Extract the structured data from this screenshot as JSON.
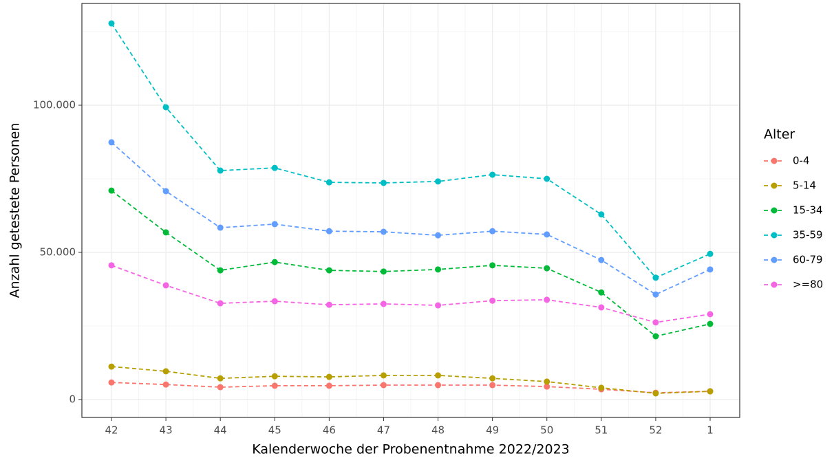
{
  "chart_data": {
    "type": "line",
    "x_label": "Kalenderwoche der Probenentnahme 2022/2023",
    "y_label": "Anzahl getestete Personen",
    "legend_title": "Alter",
    "legend_position": "right",
    "grid": true,
    "categories": [
      "42",
      "43",
      "44",
      "45",
      "46",
      "47",
      "48",
      "49",
      "50",
      "51",
      "52",
      "1"
    ],
    "ylim": [
      -6075,
      134580
    ],
    "yticks": [
      0,
      {
        "value": 50000,
        "label": "50.000"
      },
      {
        "value": 100000,
        "label": "100.000"
      }
    ],
    "series": [
      {
        "name": "0-4",
        "color": "#F8766D",
        "values": [
          5800,
          5100,
          4200,
          4700,
          4700,
          4900,
          4900,
          4900,
          4400,
          3500,
          2300,
          2800
        ]
      },
      {
        "name": "5-14",
        "color": "#B79F00",
        "values": [
          11200,
          9600,
          7200,
          7900,
          7700,
          8200,
          8200,
          7200,
          6100,
          4000,
          2100,
          2800
        ]
      },
      {
        "name": "15-34",
        "color": "#00BA38",
        "values": [
          71000,
          56800,
          43900,
          46700,
          43900,
          43500,
          44200,
          45600,
          44600,
          36400,
          21500,
          25700
        ]
      },
      {
        "name": "35-59",
        "color": "#00BFC4",
        "values": [
          127800,
          99300,
          77800,
          78700,
          73800,
          73600,
          74100,
          76400,
          75000,
          62900,
          41400,
          49500
        ]
      },
      {
        "name": "60-79",
        "color": "#619CFF",
        "values": [
          87400,
          70800,
          58400,
          59600,
          57200,
          57000,
          55800,
          57200,
          56100,
          47400,
          35700,
          44200
        ]
      },
      {
        "name": ">=80",
        "color": "#F564E3",
        "values": [
          45600,
          38800,
          32700,
          33400,
          32200,
          32500,
          32000,
          33600,
          33900,
          31300,
          26200,
          29000
        ]
      }
    ]
  }
}
